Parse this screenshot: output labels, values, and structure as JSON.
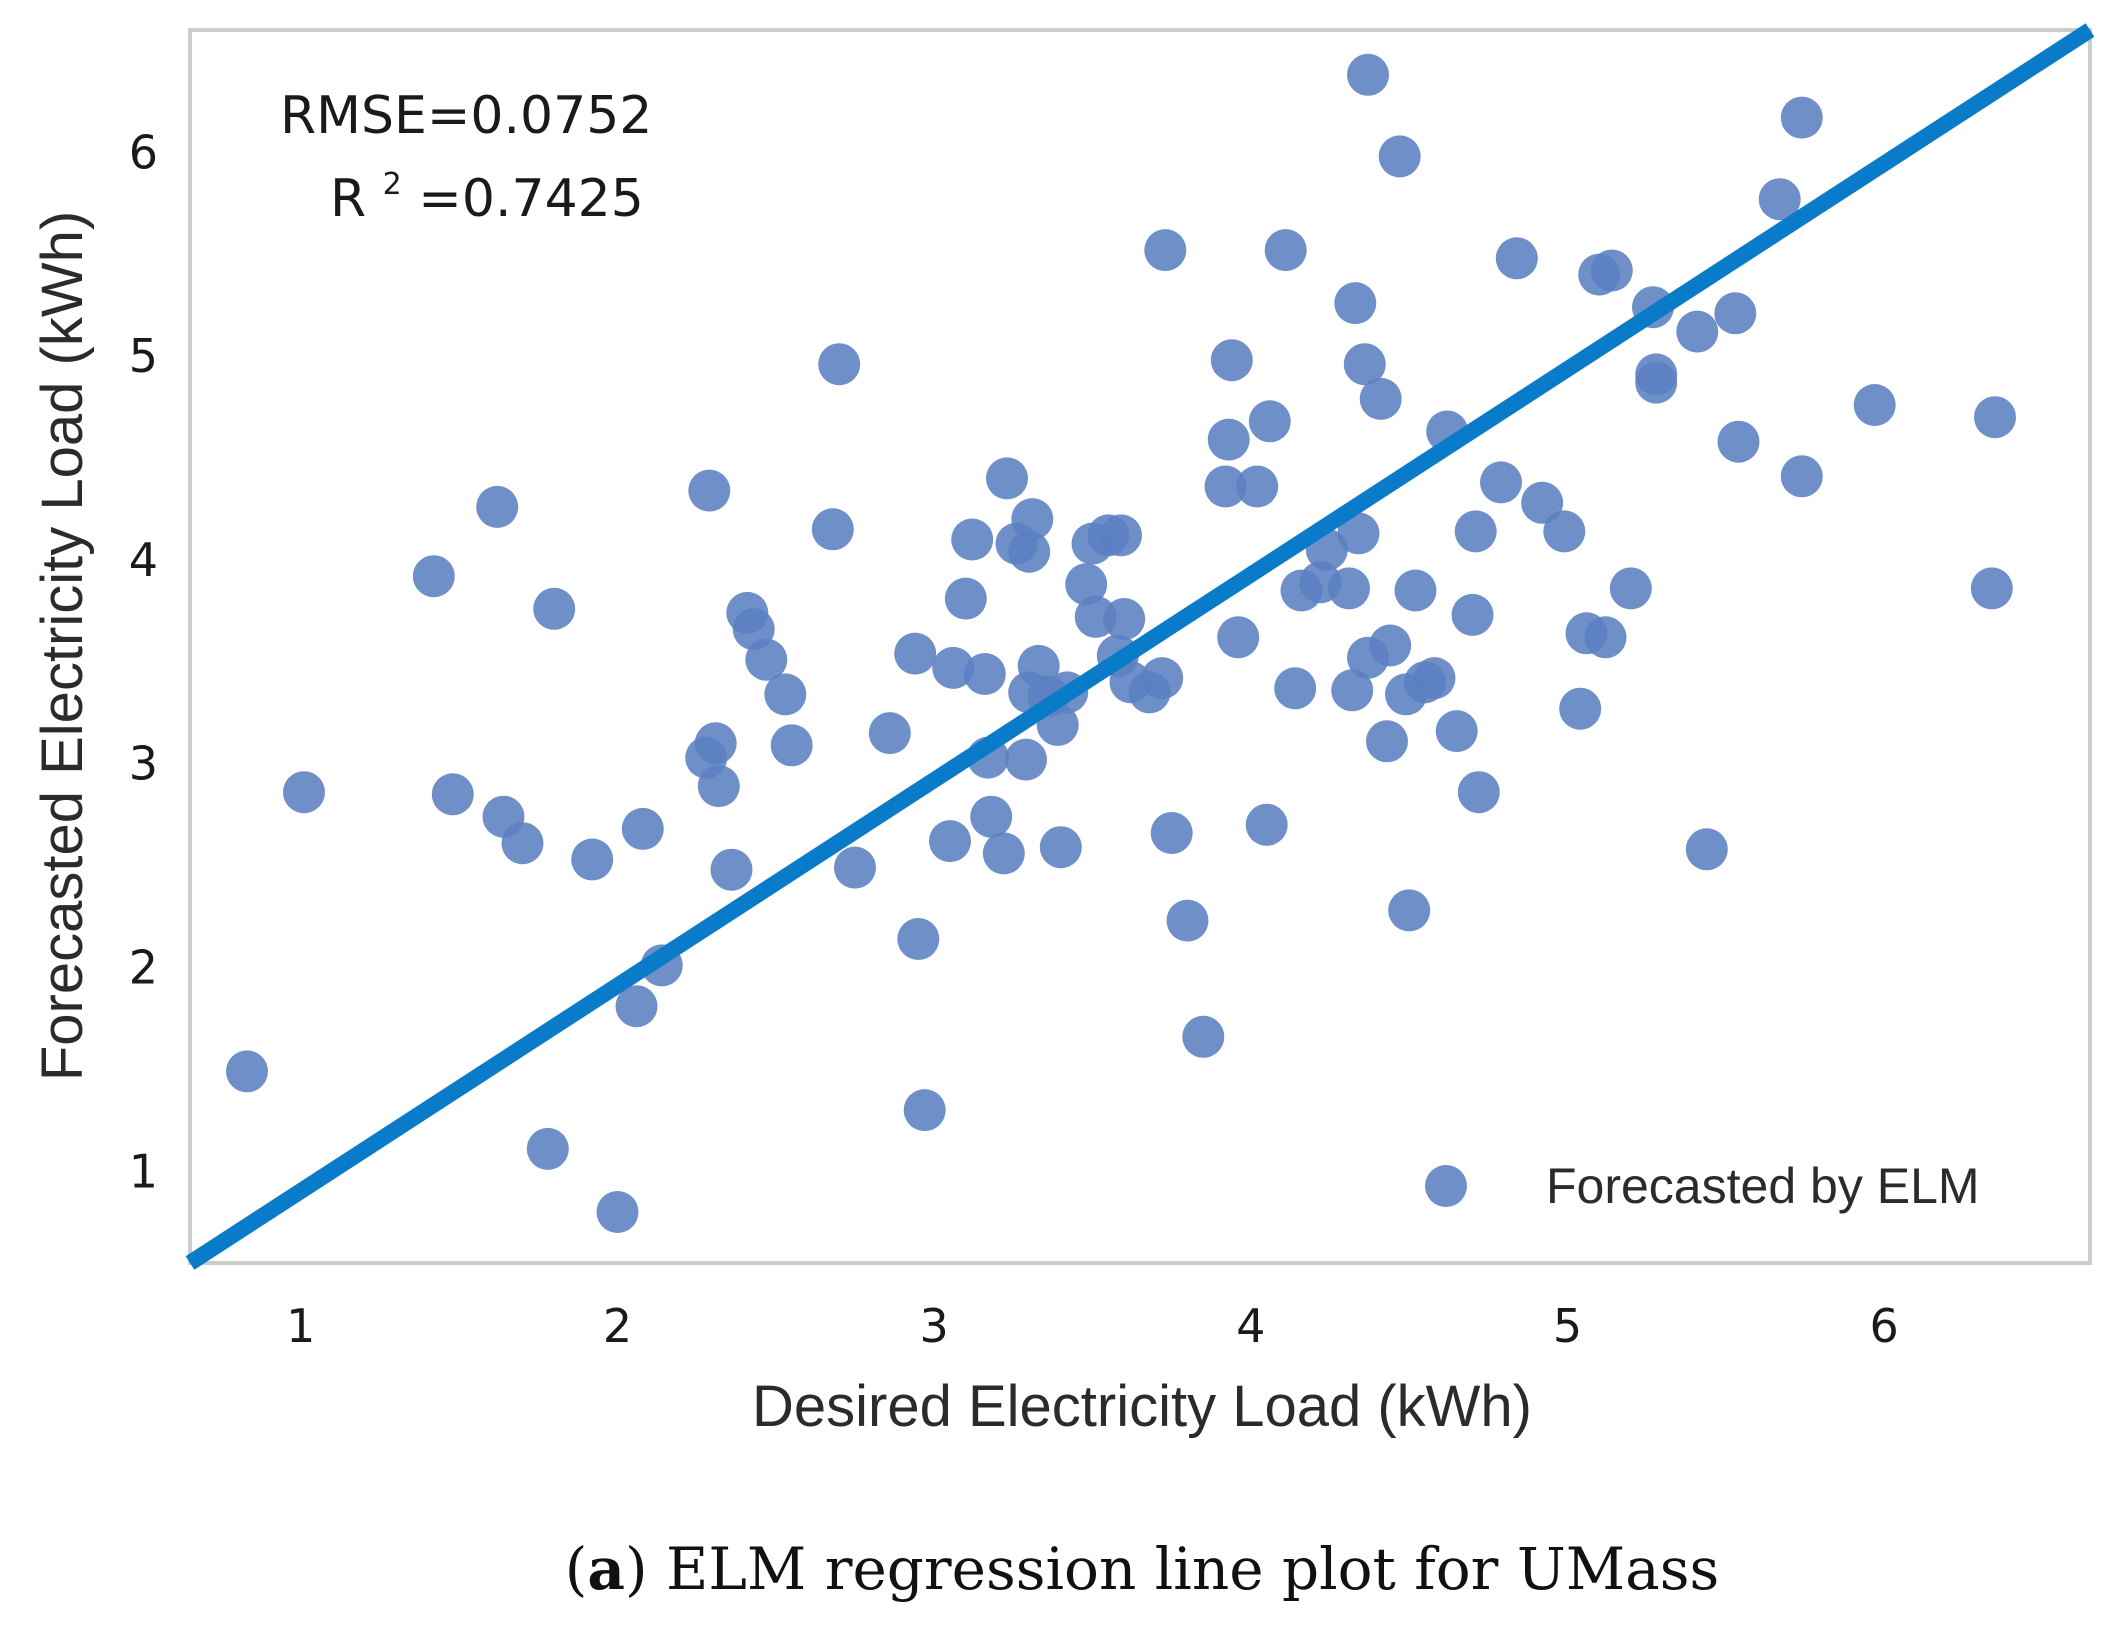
{
  "chart_data": {
    "type": "scatter",
    "xlabel": "Desired Electricity Load (kWh)",
    "ylabel": "Forecasted Electricity Load (kWh)",
    "xlim": [
      0.65,
      6.65
    ],
    "ylim": [
      0.55,
      6.6
    ],
    "xticks": [
      1,
      2,
      3,
      4,
      5,
      6
    ],
    "yticks": [
      1,
      2,
      3,
      4,
      5,
      6
    ],
    "grid": false,
    "legend_position": "bottom-right",
    "annotations": {
      "rmse": "RMSE=0.0752",
      "r2_prefix": "R",
      "r2_sup": "2",
      "r2_value": "=0.7425"
    },
    "regression_line": {
      "x": [
        0.65,
        6.65
      ],
      "y": [
        0.55,
        6.6
      ],
      "color": "#0a7bc8"
    },
    "series": [
      {
        "name": "Forecasted by ELM",
        "color": "#5b7fc0",
        "points": [
          [
            0.83,
            1.49
          ],
          [
            1.01,
            2.86
          ],
          [
            1.42,
            3.92
          ],
          [
            1.48,
            2.85
          ],
          [
            1.62,
            4.26
          ],
          [
            1.64,
            2.74
          ],
          [
            1.7,
            2.61
          ],
          [
            1.78,
            1.11
          ],
          [
            1.8,
            3.76
          ],
          [
            1.92,
            2.53
          ],
          [
            2.0,
            0.8
          ],
          [
            2.06,
            1.81
          ],
          [
            2.08,
            2.68
          ],
          [
            2.14,
            2.01
          ],
          [
            2.28,
            3.03
          ],
          [
            2.29,
            4.34
          ],
          [
            2.31,
            3.1
          ],
          [
            2.32,
            2.89
          ],
          [
            2.36,
            2.48
          ],
          [
            2.41,
            3.74
          ],
          [
            2.43,
            3.66
          ],
          [
            2.47,
            3.51
          ],
          [
            2.53,
            3.34
          ],
          [
            2.55,
            3.09
          ],
          [
            2.68,
            4.15
          ],
          [
            2.7,
            4.96
          ],
          [
            2.75,
            2.49
          ],
          [
            2.86,
            3.15
          ],
          [
            2.94,
            3.54
          ],
          [
            2.95,
            2.14
          ],
          [
            2.97,
            1.3
          ],
          [
            3.05,
            2.62
          ],
          [
            3.06,
            3.47
          ],
          [
            3.1,
            3.81
          ],
          [
            3.12,
            4.1
          ],
          [
            3.16,
            3.44
          ],
          [
            3.17,
            3.03
          ],
          [
            3.18,
            2.74
          ],
          [
            3.22,
            2.56
          ],
          [
            3.23,
            4.4
          ],
          [
            3.26,
            4.08
          ],
          [
            3.29,
            3.02
          ],
          [
            3.3,
            4.04
          ],
          [
            3.31,
            4.2
          ],
          [
            3.3,
            3.35
          ],
          [
            3.33,
            3.48
          ],
          [
            3.36,
            3.33
          ],
          [
            3.39,
            3.19
          ],
          [
            3.4,
            2.59
          ],
          [
            3.42,
            3.35
          ],
          [
            3.48,
            3.88
          ],
          [
            3.5,
            4.08
          ],
          [
            3.51,
            3.72
          ],
          [
            3.55,
            4.12
          ],
          [
            3.58,
            3.53
          ],
          [
            3.59,
            4.12
          ],
          [
            3.6,
            3.71
          ],
          [
            3.62,
            3.4
          ],
          [
            3.68,
            3.35
          ],
          [
            3.72,
            3.42
          ],
          [
            3.73,
            5.52
          ],
          [
            3.75,
            2.66
          ],
          [
            3.8,
            2.23
          ],
          [
            3.85,
            1.66
          ],
          [
            3.92,
            4.36
          ],
          [
            3.93,
            4.59
          ],
          [
            3.94,
            4.98
          ],
          [
            3.96,
            3.62
          ],
          [
            4.02,
            4.36
          ],
          [
            4.05,
            2.7
          ],
          [
            4.06,
            4.68
          ],
          [
            4.11,
            5.52
          ],
          [
            4.14,
            3.37
          ],
          [
            4.16,
            3.85
          ],
          [
            4.22,
            3.89
          ],
          [
            4.24,
            4.05
          ],
          [
            4.31,
            3.86
          ],
          [
            4.32,
            3.36
          ],
          [
            4.33,
            5.26
          ],
          [
            4.34,
            4.13
          ],
          [
            4.36,
            4.96
          ],
          [
            4.37,
            3.52
          ],
          [
            4.37,
            6.38
          ],
          [
            4.41,
            4.79
          ],
          [
            4.43,
            3.11
          ],
          [
            4.44,
            3.58
          ],
          [
            4.47,
            5.98
          ],
          [
            4.49,
            3.34
          ],
          [
            4.5,
            2.28
          ],
          [
            4.52,
            3.85
          ],
          [
            4.55,
            3.4
          ],
          [
            4.58,
            3.42
          ],
          [
            4.62,
            4.63
          ],
          [
            4.65,
            3.16
          ],
          [
            4.7,
            3.73
          ],
          [
            4.71,
            4.14
          ],
          [
            4.72,
            2.86
          ],
          [
            4.79,
            4.38
          ],
          [
            4.84,
            5.48
          ],
          [
            4.92,
            4.28
          ],
          [
            4.99,
            4.14
          ],
          [
            5.04,
            3.27
          ],
          [
            5.06,
            3.64
          ],
          [
            5.1,
            5.4
          ],
          [
            5.12,
            3.62
          ],
          [
            5.14,
            5.42
          ],
          [
            5.2,
            3.86
          ],
          [
            5.27,
            5.24
          ],
          [
            5.28,
            4.91
          ],
          [
            5.28,
            4.87
          ],
          [
            5.41,
            5.12
          ],
          [
            5.44,
            2.58
          ],
          [
            5.53,
            5.21
          ],
          [
            5.54,
            4.58
          ],
          [
            5.67,
            5.77
          ],
          [
            5.74,
            6.17
          ],
          [
            5.74,
            4.41
          ],
          [
            5.97,
            4.76
          ],
          [
            6.34,
            3.86
          ],
          [
            6.35,
            4.7
          ]
        ]
      }
    ]
  },
  "caption": {
    "open": "(",
    "label": "a",
    "text": ") ELM regression line plot for UMass"
  }
}
